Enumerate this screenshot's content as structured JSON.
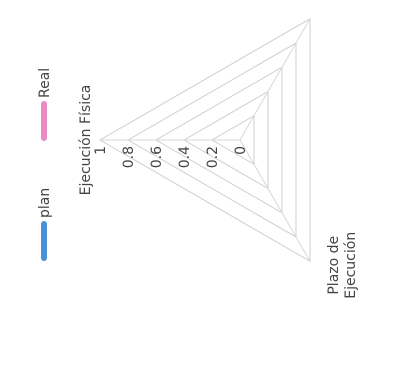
{
  "chart_data": {
    "type": "radar",
    "axes": [
      "Ejecución Física",
      "Plazo de Ejecución"
    ],
    "axis_label_lines": {
      "Plazo de Ejecución": [
        "Plazo de",
        "Ejecución"
      ]
    },
    "ticks": [
      "0",
      "0.2",
      "0.4",
      "0.6",
      "0.8",
      "1"
    ],
    "rlim": [
      0,
      1
    ],
    "legend": {
      "position": "top-left",
      "entries": [
        {
          "name": "plan",
          "color": "#4a90d9"
        },
        {
          "name": "Real",
          "color": "#e88ac4"
        }
      ]
    },
    "orientation_note": "",
    "series": [
      {
        "name": "plan",
        "values": [],
        "color": "#4a90d9"
      },
      {
        "name": "Real",
        "values": [],
        "color": "#e88ac4"
      }
    ]
  }
}
